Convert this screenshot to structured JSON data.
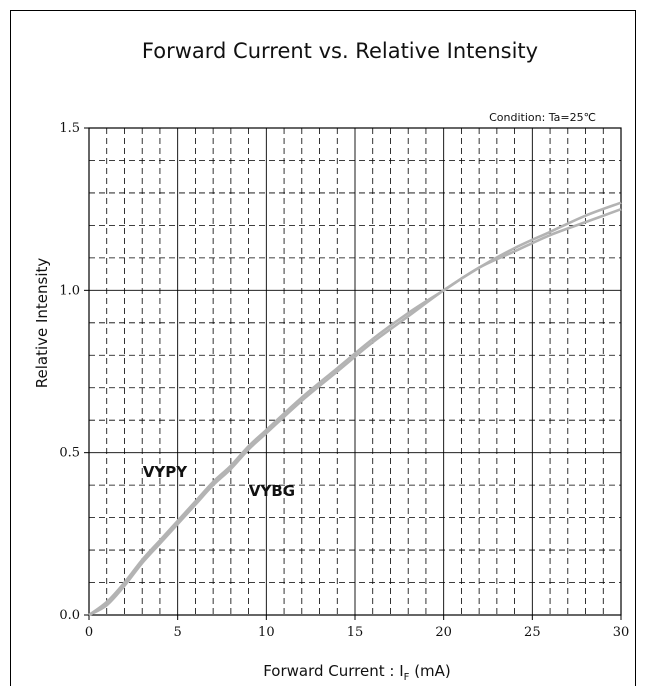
{
  "chart_data": {
    "type": "line",
    "title": "Forward Current vs. Relative Intensity",
    "xlabel_main": "Forward Current : I",
    "xlabel_sub": "F",
    "xlabel_unit": " (mA)",
    "ylabel": "Relative Intensity",
    "condition": "Condition: Ta=25℃",
    "xlim": [
      0,
      30
    ],
    "ylim": [
      0,
      1.5
    ],
    "xticks": [
      "0",
      "5",
      "10",
      "15",
      "20",
      "25",
      "30"
    ],
    "yticks": [
      "0.0",
      "0.5",
      "1.0",
      "1.5"
    ],
    "grid": true,
    "series": [
      {
        "name": "VYPY",
        "x": [
          0,
          1,
          2,
          3,
          4,
          5,
          6,
          7,
          8,
          9,
          10,
          12,
          14,
          16,
          18,
          20,
          22,
          24,
          26,
          28,
          30
        ],
        "y": [
          0.0,
          0.04,
          0.1,
          0.17,
          0.23,
          0.29,
          0.35,
          0.41,
          0.46,
          0.52,
          0.57,
          0.67,
          0.76,
          0.85,
          0.93,
          1.0,
          1.07,
          1.12,
          1.17,
          1.21,
          1.25
        ]
      },
      {
        "name": "VYBG",
        "x": [
          0,
          1,
          2,
          3,
          4,
          5,
          6,
          7,
          8,
          9,
          10,
          12,
          14,
          16,
          18,
          20,
          22,
          24,
          26,
          28,
          30
        ],
        "y": [
          0.0,
          0.03,
          0.09,
          0.16,
          0.22,
          0.28,
          0.34,
          0.4,
          0.45,
          0.51,
          0.56,
          0.66,
          0.75,
          0.84,
          0.92,
          1.0,
          1.07,
          1.13,
          1.18,
          1.23,
          1.27
        ]
      }
    ],
    "colors": {
      "line": "#b3b3b3",
      "grid_major": "#000000",
      "grid_minor": "#000000"
    }
  }
}
